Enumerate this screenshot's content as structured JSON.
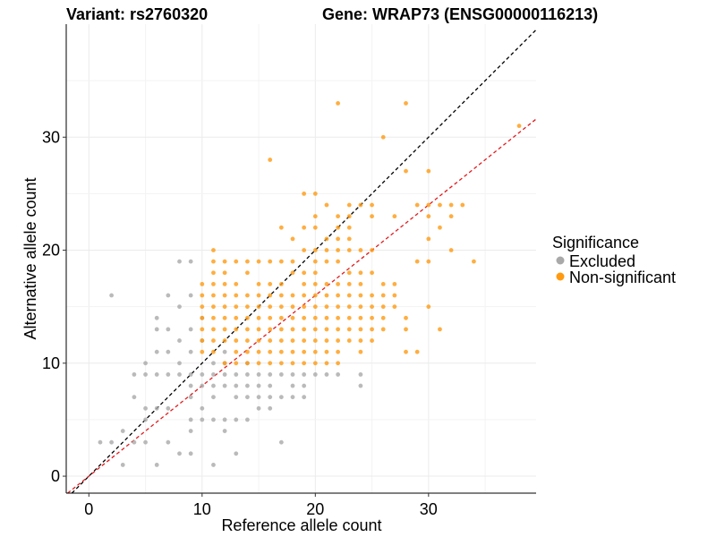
{
  "header": {
    "variant": "Variant: rs2760320",
    "gene": "Gene: WRAP73 (ENSG00000116213)"
  },
  "chart_data": {
    "type": "scatter",
    "xlabel": "Reference allele count",
    "ylabel": "Alternative allele count",
    "xlim": [
      -2,
      39.5
    ],
    "ylim": [
      -1.5,
      40
    ],
    "x_ticks": [
      0,
      10,
      20,
      30
    ],
    "y_ticks": [
      0,
      10,
      20,
      30
    ],
    "grid": true,
    "legend": {
      "title": "Significance",
      "position": "right",
      "entries": [
        {
          "label": "Excluded",
          "color": "#a9a9a9"
        },
        {
          "label": "Non-significant",
          "color": "#ff9a10"
        }
      ]
    },
    "reference_lines": [
      {
        "slope": 1,
        "intercept": 0,
        "color": "#000000",
        "style": "dashed"
      },
      {
        "slope": 0.8,
        "intercept": 0,
        "color": "#e31a1c",
        "style": "dashed"
      }
    ],
    "series": [
      {
        "name": "Excluded",
        "color": "#a9a9a9",
        "points": [
          [
            1,
            3
          ],
          [
            2,
            3
          ],
          [
            3,
            4
          ],
          [
            3,
            1
          ],
          [
            2,
            16
          ],
          [
            4,
            3
          ],
          [
            5,
            3
          ],
          [
            5,
            5
          ],
          [
            6,
            1
          ],
          [
            6,
            6
          ],
          [
            7,
            3
          ],
          [
            7,
            6
          ],
          [
            8,
            2
          ],
          [
            9,
            2
          ],
          [
            4,
            9
          ],
          [
            5,
            9
          ],
          [
            6,
            9
          ],
          [
            6,
            11
          ],
          [
            6,
            13
          ],
          [
            6,
            14
          ],
          [
            7,
            9
          ],
          [
            7,
            11
          ],
          [
            7,
            13
          ],
          [
            7,
            16
          ],
          [
            4,
            7
          ],
          [
            5,
            6
          ],
          [
            5,
            10
          ],
          [
            8,
            9
          ],
          [
            8,
            10
          ],
          [
            8,
            12
          ],
          [
            8,
            15
          ],
          [
            8,
            19
          ],
          [
            9,
            4
          ],
          [
            9,
            5
          ],
          [
            9,
            7
          ],
          [
            9,
            8
          ],
          [
            9,
            9
          ],
          [
            9,
            11
          ],
          [
            9,
            13
          ],
          [
            9,
            16
          ],
          [
            9,
            19
          ],
          [
            10,
            5
          ],
          [
            10,
            6
          ],
          [
            10,
            8
          ],
          [
            10,
            9
          ],
          [
            10,
            12
          ],
          [
            10,
            14
          ],
          [
            11,
            1
          ],
          [
            11,
            5
          ],
          [
            11,
            7
          ],
          [
            11,
            8
          ],
          [
            11,
            9
          ],
          [
            11,
            10
          ],
          [
            12,
            4
          ],
          [
            12,
            5
          ],
          [
            12,
            8
          ],
          [
            12,
            9
          ],
          [
            12,
            10
          ],
          [
            12,
            11
          ],
          [
            13,
            2
          ],
          [
            13,
            5
          ],
          [
            13,
            7
          ],
          [
            13,
            8
          ],
          [
            13,
            9
          ],
          [
            14,
            5
          ],
          [
            14,
            7
          ],
          [
            14,
            8
          ],
          [
            14,
            9
          ],
          [
            14,
            10
          ],
          [
            15,
            6
          ],
          [
            15,
            7
          ],
          [
            15,
            8
          ],
          [
            15,
            9
          ],
          [
            16,
            6
          ],
          [
            16,
            7
          ],
          [
            16,
            8
          ],
          [
            16,
            9
          ],
          [
            17,
            3
          ],
          [
            17,
            7
          ],
          [
            17,
            9
          ],
          [
            18,
            7
          ],
          [
            18,
            8
          ],
          [
            18,
            9
          ],
          [
            19,
            7
          ],
          [
            19,
            8
          ],
          [
            19,
            9
          ],
          [
            20,
            9
          ],
          [
            21,
            9
          ],
          [
            22,
            9
          ],
          [
            24,
            8
          ],
          [
            24,
            9
          ]
        ]
      },
      {
        "name": "Non-significant",
        "color": "#ff9a10",
        "points": [
          [
            10,
            11
          ],
          [
            10,
            12
          ],
          [
            10,
            13
          ],
          [
            10,
            14
          ],
          [
            10,
            15
          ],
          [
            10,
            16
          ],
          [
            10,
            17
          ],
          [
            11,
            11
          ],
          [
            11,
            12
          ],
          [
            11,
            13
          ],
          [
            11,
            14
          ],
          [
            11,
            15
          ],
          [
            11,
            16
          ],
          [
            11,
            17
          ],
          [
            11,
            18
          ],
          [
            11,
            19
          ],
          [
            11,
            20
          ],
          [
            12,
            10
          ],
          [
            12,
            12
          ],
          [
            12,
            13
          ],
          [
            12,
            14
          ],
          [
            12,
            15
          ],
          [
            12,
            16
          ],
          [
            12,
            17
          ],
          [
            12,
            18
          ],
          [
            12,
            19
          ],
          [
            13,
            10
          ],
          [
            13,
            11
          ],
          [
            13,
            12
          ],
          [
            13,
            13
          ],
          [
            13,
            14
          ],
          [
            13,
            15
          ],
          [
            13,
            16
          ],
          [
            13,
            17
          ],
          [
            13,
            19
          ],
          [
            14,
            10
          ],
          [
            14,
            11
          ],
          [
            14,
            12
          ],
          [
            14,
            13
          ],
          [
            14,
            14
          ],
          [
            14,
            15
          ],
          [
            14,
            16
          ],
          [
            14,
            18
          ],
          [
            14,
            19
          ],
          [
            15,
            10
          ],
          [
            15,
            11
          ],
          [
            15,
            12
          ],
          [
            15,
            13
          ],
          [
            15,
            14
          ],
          [
            15,
            15
          ],
          [
            15,
            16
          ],
          [
            15,
            17
          ],
          [
            15,
            19
          ],
          [
            16,
            10
          ],
          [
            16,
            11
          ],
          [
            16,
            12
          ],
          [
            16,
            13
          ],
          [
            16,
            14
          ],
          [
            16,
            15
          ],
          [
            16,
            16
          ],
          [
            16,
            17
          ],
          [
            16,
            19
          ],
          [
            16,
            28
          ],
          [
            17,
            10
          ],
          [
            17,
            11
          ],
          [
            17,
            12
          ],
          [
            17,
            13
          ],
          [
            17,
            14
          ],
          [
            17,
            15
          ],
          [
            17,
            16
          ],
          [
            17,
            17
          ],
          [
            17,
            19
          ],
          [
            17,
            22
          ],
          [
            18,
            10
          ],
          [
            18,
            11
          ],
          [
            18,
            12
          ],
          [
            18,
            13
          ],
          [
            18,
            14
          ],
          [
            18,
            15
          ],
          [
            18,
            16
          ],
          [
            18,
            18
          ],
          [
            18,
            19
          ],
          [
            18,
            21
          ],
          [
            19,
            10
          ],
          [
            19,
            11
          ],
          [
            19,
            12
          ],
          [
            19,
            13
          ],
          [
            19,
            14
          ],
          [
            19,
            15
          ],
          [
            19,
            16
          ],
          [
            19,
            17
          ],
          [
            19,
            18
          ],
          [
            19,
            20
          ],
          [
            19,
            22
          ],
          [
            19,
            25
          ],
          [
            20,
            10
          ],
          [
            20,
            11
          ],
          [
            20,
            12
          ],
          [
            20,
            13
          ],
          [
            20,
            14
          ],
          [
            20,
            15
          ],
          [
            20,
            16
          ],
          [
            20,
            17
          ],
          [
            20,
            18
          ],
          [
            20,
            19
          ],
          [
            20,
            20
          ],
          [
            20,
            22
          ],
          [
            20,
            23
          ],
          [
            20,
            25
          ],
          [
            21,
            10
          ],
          [
            21,
            11
          ],
          [
            21,
            12
          ],
          [
            21,
            13
          ],
          [
            21,
            14
          ],
          [
            21,
            15
          ],
          [
            21,
            16
          ],
          [
            21,
            17
          ],
          [
            21,
            19
          ],
          [
            21,
            20
          ],
          [
            21,
            21
          ],
          [
            21,
            24
          ],
          [
            22,
            10
          ],
          [
            22,
            11
          ],
          [
            22,
            12
          ],
          [
            22,
            13
          ],
          [
            22,
            14
          ],
          [
            22,
            15
          ],
          [
            22,
            16
          ],
          [
            22,
            17
          ],
          [
            22,
            19
          ],
          [
            22,
            20
          ],
          [
            22,
            21
          ],
          [
            22,
            22
          ],
          [
            22,
            23
          ],
          [
            22,
            33
          ],
          [
            23,
            12
          ],
          [
            23,
            13
          ],
          [
            23,
            14
          ],
          [
            23,
            15
          ],
          [
            23,
            16
          ],
          [
            23,
            17
          ],
          [
            23,
            18
          ],
          [
            23,
            20
          ],
          [
            23,
            21
          ],
          [
            23,
            22
          ],
          [
            23,
            23
          ],
          [
            23,
            24
          ],
          [
            24,
            11
          ],
          [
            24,
            12
          ],
          [
            24,
            13
          ],
          [
            24,
            14
          ],
          [
            24,
            15
          ],
          [
            24,
            16
          ],
          [
            24,
            17
          ],
          [
            24,
            18
          ],
          [
            24,
            20
          ],
          [
            24,
            24
          ],
          [
            25,
            12
          ],
          [
            25,
            13
          ],
          [
            25,
            14
          ],
          [
            25,
            15
          ],
          [
            25,
            16
          ],
          [
            25,
            18
          ],
          [
            25,
            20
          ],
          [
            25,
            23
          ],
          [
            25,
            24
          ],
          [
            26,
            13
          ],
          [
            26,
            14
          ],
          [
            26,
            15
          ],
          [
            26,
            16
          ],
          [
            26,
            17
          ],
          [
            26,
            30
          ],
          [
            27,
            15
          ],
          [
            27,
            16
          ],
          [
            27,
            17
          ],
          [
            27,
            23
          ],
          [
            28,
            11
          ],
          [
            28,
            13
          ],
          [
            28,
            14
          ],
          [
            28,
            27
          ],
          [
            28,
            33
          ],
          [
            29,
            11
          ],
          [
            29,
            19
          ],
          [
            29,
            24
          ],
          [
            30,
            15
          ],
          [
            30,
            19
          ],
          [
            30,
            21
          ],
          [
            30,
            23
          ],
          [
            30,
            24
          ],
          [
            30,
            27
          ],
          [
            31,
            13
          ],
          [
            31,
            22
          ],
          [
            31,
            24
          ],
          [
            32,
            20
          ],
          [
            32,
            23
          ],
          [
            32,
            24
          ],
          [
            33,
            24
          ],
          [
            34,
            19
          ],
          [
            38,
            31
          ]
        ]
      }
    ]
  }
}
